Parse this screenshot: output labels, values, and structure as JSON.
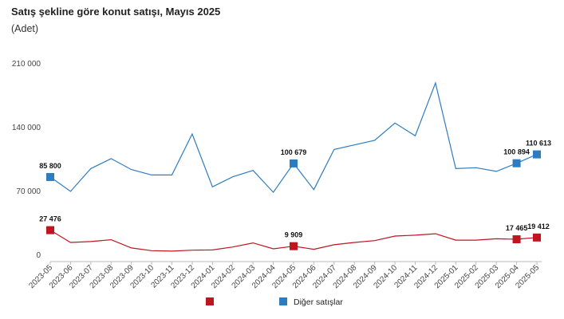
{
  "chart_data": {
    "type": "line",
    "title": "Satış şekline göre konut satışı, Mayıs 2025",
    "subtitle": "(Adet)",
    "categories": [
      "2023-05",
      "2023-06",
      "2023-07",
      "2023-08",
      "2023-09",
      "2023-10",
      "2023-11",
      "2023-12",
      "2024-01",
      "2024-02",
      "2024-03",
      "2024-04",
      "2024-05",
      "2024-06",
      "2024-07",
      "2024-08",
      "2024-09",
      "2024-10",
      "2024-11",
      "2024-12",
      "2025-01",
      "2025-02",
      "2025-03",
      "2025-04",
      "2025-05"
    ],
    "ylim": [
      0,
      210000
    ],
    "yticks": [
      0,
      70000,
      140000,
      210000
    ],
    "ytick_labels": [
      "0",
      "70 000",
      "140 000",
      "210 000"
    ],
    "grid": false,
    "legend_position": "bottom",
    "series": [
      {
        "name": "",
        "color": "#c0141e",
        "values": [
          27476,
          14000,
          15000,
          17000,
          8000,
          5000,
          4500,
          5500,
          5800,
          9000,
          13500,
          7000,
          9909,
          6500,
          11500,
          14000,
          16000,
          21000,
          22000,
          23500,
          16500,
          16500,
          18000,
          17465,
          19412
        ],
        "labels": {
          "0": "27 476",
          "12": "9 909",
          "23": "17 465",
          "24": "19 412"
        }
      },
      {
        "name": "Diğer satışlar",
        "color": "#2e7cc0",
        "values": [
          85800,
          70000,
          95000,
          106000,
          94000,
          88000,
          88000,
          133000,
          75000,
          86000,
          93000,
          69000,
          100679,
          72000,
          116000,
          121000,
          126000,
          145000,
          131000,
          189000,
          95000,
          96000,
          92000,
          100894,
          110613
        ],
        "labels": {
          "0": "85 800",
          "12": "100 679",
          "23": "100 894",
          "24": "110 613"
        }
      }
    ]
  }
}
